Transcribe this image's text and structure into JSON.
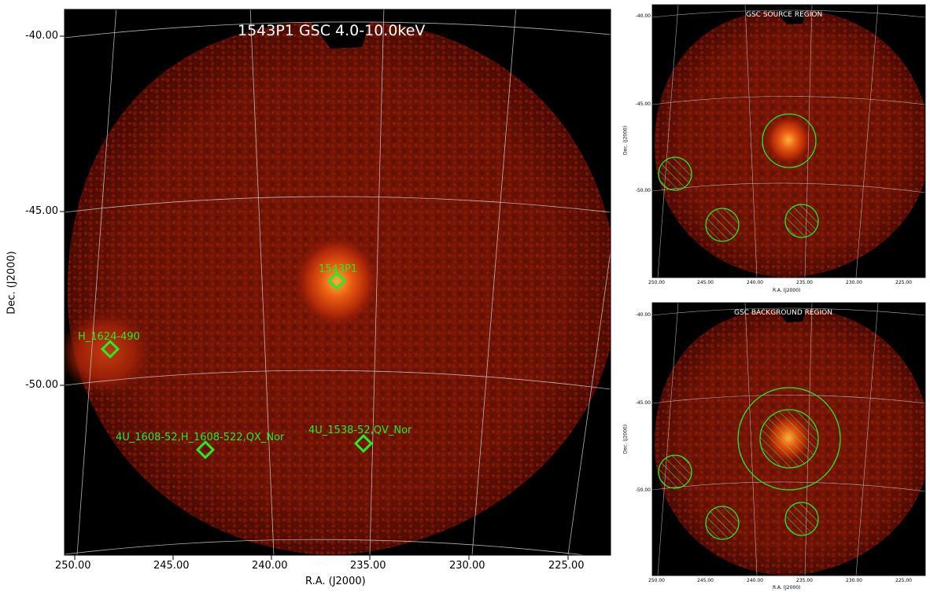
{
  "main": {
    "title": "1543P1 GSC 4.0-10.0keV",
    "xlabel": "R.A. (J2000)",
    "ylabel": "Dec. (J2000)",
    "xticks": [
      "250.00",
      "245.00",
      "240.00",
      "235.00",
      "230.00",
      "225.00"
    ],
    "yticks": [
      "-40.00",
      "-45.00",
      "-50.00"
    ],
    "sources": [
      {
        "name": "1543P1"
      },
      {
        "name": "H_1624-490"
      },
      {
        "name": "4U_1608-52,H_1608-522,QX_Nor"
      },
      {
        "name": "4U_1538-52,QV_Nor"
      }
    ],
    "colors": {
      "background": "#000000",
      "image": "#8a1a08",
      "marker": "#22ee22",
      "title": "#ffffff",
      "grid": "#cccccc"
    }
  },
  "source_panel": {
    "title": "GSC SOURCE REGION",
    "xlabel": "R.A. (J2000)",
    "ylabel": "Dec. (J2000)",
    "xticks": [
      "250.00",
      "245.00",
      "240.00",
      "235.00",
      "230.00",
      "225.00"
    ],
    "yticks": [
      "-40.00",
      "-45.00",
      "-50.00"
    ]
  },
  "background_panel": {
    "title": "GSC BACKGROUND REGION",
    "xlabel": "R.A. (J2000)",
    "ylabel": "Dec. (J2000)",
    "xticks": [
      "250.00",
      "245.00",
      "240.00",
      "235.00",
      "230.00",
      "225.00"
    ],
    "yticks": [
      "-40.00",
      "-45.00",
      "-50.00"
    ]
  }
}
